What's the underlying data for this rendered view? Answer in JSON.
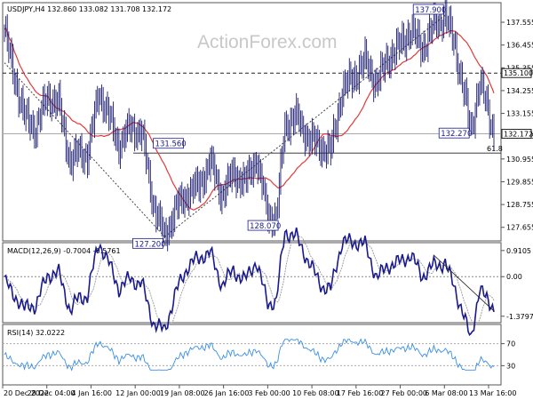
{
  "chart_data": {
    "type": "candlestick",
    "symbol_title": "USDJPY,H4  132.860 133.082 131.708 132.172",
    "watermark": "ActionForex.com",
    "x_tick_labels": [
      "20 Dec 2022",
      "28 Dec 04:00",
      "4 Jan 16:00",
      "12 Jan 00:00",
      "19 Jan 08:00",
      "26 Jan 16:00",
      "3 Feb 00:00",
      "10 Feb 08:00",
      "17 Feb 16:00",
      "27 Feb 00:00",
      "6 Mar 08:00",
      "13 Mar 16:00"
    ],
    "price_panel": {
      "y_ticks": [
        "137.555",
        "136.455",
        "135.355",
        "134.255",
        "133.155",
        "132.055",
        "130.955",
        "129.855",
        "128.755",
        "127.655"
      ],
      "y_tick_values": [
        137.555,
        136.455,
        135.355,
        134.255,
        133.155,
        132.055,
        130.955,
        129.855,
        128.755,
        127.655
      ],
      "ylim": [
        127.0,
        138.5
      ],
      "last_price_label": "132.172",
      "last_price": 132.172,
      "resistance_label": "135.100",
      "resistance": 135.1,
      "fib_label": "61.8",
      "fib_level": 131.24,
      "annotations": [
        {
          "label": "137.900",
          "value": 137.9
        },
        {
          "label": "131.560",
          "value": 131.56
        },
        {
          "label": "128.070",
          "value": 128.07
        },
        {
          "label": "127.200",
          "value": 127.2
        },
        {
          "label": "132.270",
          "value": 132.27
        }
      ],
      "series": [
        {
          "name": "price",
          "color": "#1a1a6e"
        },
        {
          "name": "ma",
          "color": "#e23a3a"
        }
      ]
    },
    "macd_panel": {
      "title": "MACD(12,26,9) -0.7004 -0.5761",
      "y_ticks": [
        "0.9105",
        "0.00",
        "-1.3797"
      ],
      "y_tick_values": [
        0.9105,
        0.0,
        -1.3797
      ],
      "series": [
        {
          "name": "macd",
          "color": "#1a1a8c"
        },
        {
          "name": "signal",
          "color": "#999999"
        }
      ]
    },
    "rsi_panel": {
      "title": "RSI(14) 32.0222",
      "y_ticks": [
        "70",
        "30"
      ],
      "y_tick_values": [
        70,
        30
      ],
      "ylim": [
        0,
        100
      ],
      "series": [
        {
          "name": "rsi",
          "color": "#3a8ee6"
        }
      ]
    },
    "colors": {
      "line_series": "#1a1a6e",
      "ma": "#e23a3a",
      "trendline": "#444444",
      "macd": "#1a1a8c",
      "rsi": "#3a8ee6",
      "box_border": "#1a1a8c"
    }
  }
}
